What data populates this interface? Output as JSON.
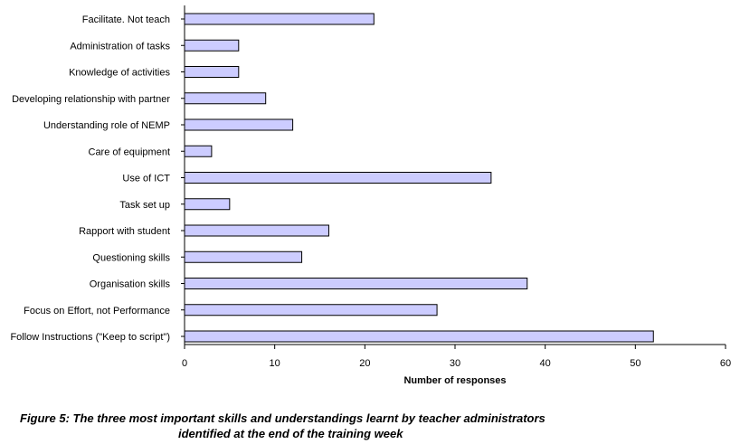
{
  "chart_data": {
    "type": "bar",
    "orientation": "horizontal",
    "categories": [
      "Facilitate. Not teach",
      "Administration of tasks",
      "Knowledge of activities",
      "Developing relationship with partner",
      "Understanding role of NEMP",
      "Care of equipment",
      "Use of ICT",
      "Task set up",
      "Rapport with student",
      "Questioning skills",
      "Organisation skills",
      "Focus on Effort, not Performance",
      "Follow Instructions (\"Keep to script\")"
    ],
    "values": [
      21,
      6,
      6,
      9,
      12,
      3,
      34,
      5,
      16,
      13,
      38,
      28,
      52
    ],
    "xlabel": "Number of responses",
    "ylabel": "",
    "xlim": [
      0,
      60
    ],
    "xticks": [
      0,
      10,
      20,
      30,
      40,
      50,
      60
    ],
    "grid": false,
    "bar_color": "#ccccff",
    "bar_edge_color": "#000000"
  },
  "caption": {
    "line1": "Figure 5: The three most important skills and understandings learnt by teacher administrators",
    "line2": "identified at the end of the training week"
  }
}
